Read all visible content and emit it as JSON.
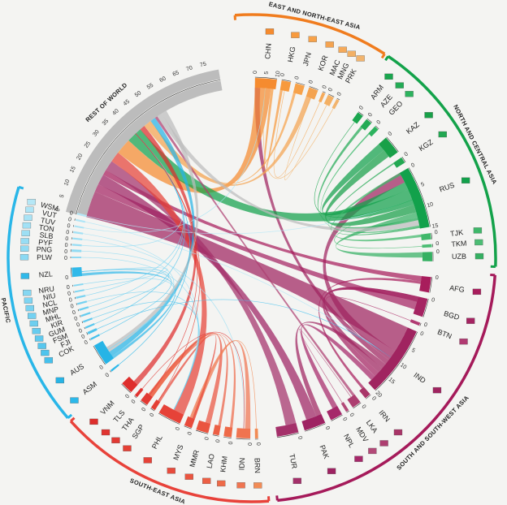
{
  "chart_data": {
    "type": "chord",
    "title": "",
    "regions": [
      {
        "name": "EAST AND NORTH-EAST ASIA",
        "color": "#f07c1e",
        "countries": [
          {
            "code": "CHN",
            "value": 10,
            "color": "#f58b2f"
          },
          {
            "code": "HKG",
            "value": 3,
            "color": "#f79a3e"
          },
          {
            "code": "JPN",
            "value": 3,
            "color": "#f7a24a"
          },
          {
            "code": "KOR",
            "value": 3,
            "color": "#f4a350"
          },
          {
            "code": "MAC",
            "value": 0.5,
            "color": "#f5aa5a"
          },
          {
            "code": "MNG",
            "value": 1,
            "color": "#f3b064"
          },
          {
            "code": "PRK",
            "value": 0.5,
            "color": "#f2b46d"
          }
        ]
      },
      {
        "name": "NORTH AND CENTRAL ASIA",
        "color": "#13a24a",
        "countries": [
          {
            "code": "ARM",
            "value": 1.5,
            "color": "#1aa64e"
          },
          {
            "code": "AZE",
            "value": 2,
            "color": "#23ab55"
          },
          {
            "code": "GEO",
            "value": 1,
            "color": "#2db35e"
          },
          {
            "code": "KAZ",
            "value": 4,
            "color": "#18a048"
          },
          {
            "code": "KGZ",
            "value": 1,
            "color": "#22a852"
          },
          {
            "code": "RUS",
            "value": 12,
            "color": "#12a14b"
          },
          {
            "code": "TJK",
            "value": 1.5,
            "color": "#3fb86a"
          },
          {
            "code": "TKM",
            "value": 0.5,
            "color": "#4cbd74"
          },
          {
            "code": "UZB",
            "value": 2,
            "color": "#35b062"
          }
        ]
      },
      {
        "name": "SOUTH AND SOUTH-WEST ASIA",
        "color": "#a51a5a",
        "countries": [
          {
            "code": "AFG",
            "value": 4,
            "color": "#a81d5c"
          },
          {
            "code": "BGD",
            "value": 6,
            "color": "#a52462"
          },
          {
            "code": "BTN",
            "value": 0.5,
            "color": "#b13a72"
          },
          {
            "code": "IND",
            "value": 20,
            "color": "#a02460"
          },
          {
            "code": "IRN",
            "value": 2,
            "color": "#a93568"
          },
          {
            "code": "LKA",
            "value": 3,
            "color": "#ad3e70"
          },
          {
            "code": "MDV",
            "value": 0.5,
            "color": "#b34a78"
          },
          {
            "code": "NPL",
            "value": 3,
            "color": "#a6286a"
          },
          {
            "code": "PAK",
            "value": 7,
            "color": "#9e2262"
          },
          {
            "code": "TUR",
            "value": 6,
            "color": "#a4306a"
          }
        ]
      },
      {
        "name": "SOUTH-EAST ASIA",
        "color": "#e8423a",
        "countries": [
          {
            "code": "BRN",
            "value": 0.5,
            "color": "#f28b55"
          },
          {
            "code": "IDN",
            "value": 5,
            "color": "#f07450"
          },
          {
            "code": "KHM",
            "value": 2,
            "color": "#ee6a48"
          },
          {
            "code": "LAO",
            "value": 1.5,
            "color": "#ec5f44"
          },
          {
            "code": "MMR",
            "value": 3,
            "color": "#ea5540"
          },
          {
            "code": "MYS",
            "value": 2,
            "color": "#e84b3c"
          },
          {
            "code": "PHL",
            "value": 6,
            "color": "#e64238"
          },
          {
            "code": "SGP",
            "value": 1,
            "color": "#e44035"
          },
          {
            "code": "THA",
            "value": 2,
            "color": "#e23a33"
          },
          {
            "code": "TLS",
            "value": 0.5,
            "color": "#e03430"
          },
          {
            "code": "VNM",
            "value": 3,
            "color": "#de2e2c"
          }
        ]
      },
      {
        "name": "PACIFIC",
        "color": "#29b6e8",
        "countries": [
          {
            "code": "ASM",
            "value": 0.2,
            "color": "#2bb8ea"
          },
          {
            "code": "AUS",
            "value": 5,
            "color": "#27b4e6"
          },
          {
            "code": "COK",
            "value": 0.2,
            "color": "#45c0ec"
          },
          {
            "code": "FJI",
            "value": 0.3,
            "color": "#4ec4ed"
          },
          {
            "code": "FSM",
            "value": 0.2,
            "color": "#57c7ee"
          },
          {
            "code": "GUM",
            "value": 0.2,
            "color": "#5fcaef"
          },
          {
            "code": "KIR",
            "value": 0.2,
            "color": "#66ccef"
          },
          {
            "code": "MHL",
            "value": 0.2,
            "color": "#6dcff0"
          },
          {
            "code": "MNP",
            "value": 0.2,
            "color": "#73d1f1"
          },
          {
            "code": "NCL",
            "value": 0.2,
            "color": "#79d3f1"
          },
          {
            "code": "NIU",
            "value": 0.1,
            "color": "#7fd5f2"
          },
          {
            "code": "NRU",
            "value": 0.1,
            "color": "#85d7f2"
          },
          {
            "code": "NZL",
            "value": 1.5,
            "color": "#31b9e9"
          },
          {
            "code": "PLW",
            "value": 0.1,
            "color": "#8bd9f3"
          },
          {
            "code": "PNG",
            "value": 0.4,
            "color": "#91dbf3"
          },
          {
            "code": "PYF",
            "value": 0.2,
            "color": "#97ddf4"
          },
          {
            "code": "SLB",
            "value": 0.2,
            "color": "#9ddff4"
          },
          {
            "code": "TON",
            "value": 0.2,
            "color": "#a3e1f5"
          },
          {
            "code": "TUV",
            "value": 0.1,
            "color": "#a9e3f5"
          },
          {
            "code": "VUT",
            "value": 0.2,
            "color": "#afe5f6"
          },
          {
            "code": "WSM",
            "value": 0.2,
            "color": "#b5e7f6"
          }
        ]
      },
      {
        "name": "REST OF WORLD",
        "color": "#b3b3b3",
        "countries": [
          {
            "code": "",
            "value": 80,
            "color": "#bdbdbd"
          }
        ]
      }
    ],
    "tick_labels": {
      "rest_of_world": [
        "0",
        "5",
        "10",
        "15",
        "20",
        "25",
        "30",
        "35",
        "40",
        "45",
        "50",
        "55",
        "60",
        "65",
        "70",
        "75"
      ],
      "chn": [
        "0",
        "5",
        "10"
      ],
      "rus": [
        "0",
        "5",
        "10",
        "15"
      ],
      "ind": [
        "0",
        "5",
        "10",
        "15",
        "20"
      ],
      "small": [
        "0"
      ]
    },
    "flows": [
      {
        "from": "IND",
        "to": "REST",
        "value": 10
      },
      {
        "from": "IND",
        "to": "RUS",
        "value": 4
      },
      {
        "from": "IND",
        "to": "CHN",
        "value": 2
      },
      {
        "from": "IND",
        "to": "PAK",
        "value": 2
      },
      {
        "from": "IND",
        "to": "BGD",
        "value": 2
      },
      {
        "from": "BGD",
        "to": "REST",
        "value": 3
      },
      {
        "from": "BGD",
        "to": "IND",
        "value": 2
      },
      {
        "from": "PAK",
        "to": "REST",
        "value": 4
      },
      {
        "from": "AFG",
        "to": "REST",
        "value": 2
      },
      {
        "from": "AFG",
        "to": "IRN",
        "value": 1
      },
      {
        "from": "TUR",
        "to": "REST",
        "value": 4
      },
      {
        "from": "PHL",
        "to": "REST",
        "value": 4
      },
      {
        "from": "CHN",
        "to": "REST",
        "value": 6
      },
      {
        "from": "RUS",
        "to": "KAZ",
        "value": 3
      },
      {
        "from": "RUS",
        "to": "REST",
        "value": 6
      },
      {
        "from": "KAZ",
        "to": "RUS",
        "value": 3
      },
      {
        "from": "UZB",
        "to": "RUS",
        "value": 2
      },
      {
        "from": "AZE",
        "to": "RUS",
        "value": 1
      },
      {
        "from": "MMR",
        "to": "THA",
        "value": 2
      },
      {
        "from": "IDN",
        "to": "MYS",
        "value": 2
      },
      {
        "from": "VNM",
        "to": "REST",
        "value": 2
      },
      {
        "from": "KOR",
        "to": "REST",
        "value": 2
      },
      {
        "from": "JPN",
        "to": "REST",
        "value": 1
      },
      {
        "from": "HKG",
        "to": "CHN",
        "value": 1
      },
      {
        "from": "NZL",
        "to": "AUS",
        "value": 1
      },
      {
        "from": "AUS",
        "to": "REST",
        "value": 2
      },
      {
        "from": "NPL",
        "to": "IND",
        "value": 2
      },
      {
        "from": "LKA",
        "to": "REST",
        "value": 1
      },
      {
        "from": "REST",
        "to": "RUS",
        "value": 2
      },
      {
        "from": "REST",
        "to": "AUS",
        "value": 2
      },
      {
        "from": "GEO",
        "to": "RUS",
        "value": 0.5
      },
      {
        "from": "KGZ",
        "to": "RUS",
        "value": 0.5
      },
      {
        "from": "TJK",
        "to": "RUS",
        "value": 1
      },
      {
        "from": "KHM",
        "to": "THA",
        "value": 1
      },
      {
        "from": "LAO",
        "to": "THA",
        "value": 1
      },
      {
        "from": "MYS",
        "to": "SGP",
        "value": 1
      }
    ]
  }
}
